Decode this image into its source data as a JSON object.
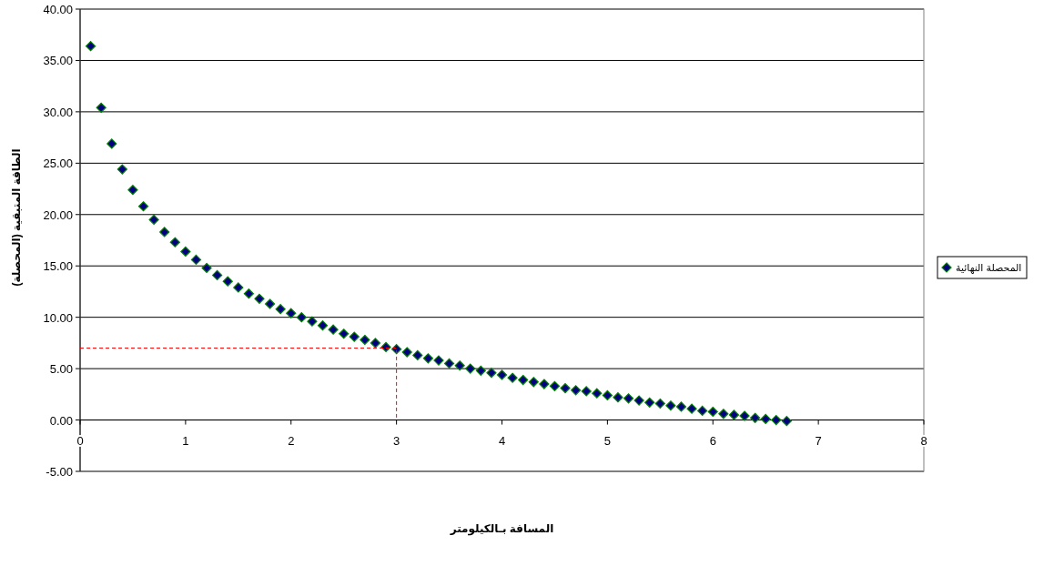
{
  "chart_data": {
    "type": "scatter",
    "xlabel": "المسافة  بـالكيلومتر",
    "ylabel": "الطاقة المتبقية (المحصلة)",
    "xlim": [
      0,
      8
    ],
    "xticks": [
      0,
      1,
      2,
      3,
      4,
      5,
      6,
      7,
      8
    ],
    "ylim": [
      -5,
      40
    ],
    "yticks": [
      {
        "value": -5,
        "label": "-5.00"
      },
      {
        "value": 0,
        "label": "0.00"
      },
      {
        "value": 5,
        "label": "5.00"
      },
      {
        "value": 10,
        "label": "10.00"
      },
      {
        "value": 15,
        "label": "15.00"
      },
      {
        "value": 20,
        "label": "20.00"
      },
      {
        "value": 25,
        "label": "25.00"
      },
      {
        "value": 30,
        "label": "30.00"
      },
      {
        "value": 35,
        "label": "35.00"
      },
      {
        "value": 40,
        "label": "40.00"
      }
    ],
    "grid": "y",
    "legend": "right",
    "marker": "diamond",
    "series": [
      {
        "name": "المحصلة النهائية",
        "color": "#000080",
        "x": [
          0.1,
          0.2,
          0.3,
          0.4,
          0.5,
          0.6,
          0.7,
          0.8,
          0.9,
          1.0,
          1.1,
          1.2,
          1.3,
          1.4,
          1.5,
          1.6,
          1.7,
          1.8,
          1.9,
          2.0,
          2.1,
          2.2,
          2.3,
          2.4,
          2.5,
          2.6,
          2.7,
          2.8,
          2.9,
          3.0,
          3.1,
          3.2,
          3.3,
          3.4,
          3.5,
          3.6,
          3.7,
          3.8,
          3.9,
          4.0,
          4.1,
          4.2,
          4.3,
          4.4,
          4.5,
          4.6,
          4.7,
          4.8,
          4.9,
          5.0,
          5.1,
          5.2,
          5.3,
          5.4,
          5.5,
          5.6,
          5.7,
          5.8,
          5.9,
          6.0,
          6.1,
          6.2,
          6.3,
          6.4,
          6.5,
          6.6,
          6.7
        ],
        "values": [
          36.4,
          30.4,
          26.9,
          24.4,
          22.4,
          20.8,
          19.5,
          18.3,
          17.3,
          16.4,
          15.6,
          14.8,
          14.1,
          13.5,
          12.9,
          12.3,
          11.8,
          11.3,
          10.8,
          10.4,
          10.0,
          9.6,
          9.2,
          8.8,
          8.4,
          8.1,
          7.8,
          7.5,
          7.1,
          6.9,
          6.6,
          6.3,
          6.0,
          5.8,
          5.5,
          5.3,
          5.0,
          4.8,
          4.6,
          4.4,
          4.1,
          3.9,
          3.7,
          3.5,
          3.3,
          3.1,
          2.9,
          2.8,
          2.6,
          2.4,
          2.2,
          2.1,
          1.9,
          1.7,
          1.6,
          1.4,
          1.3,
          1.1,
          0.9,
          0.8,
          0.6,
          0.5,
          0.4,
          0.2,
          0.1,
          0.0,
          -0.1
        ]
      },
      {
        "type": "line",
        "color": "#ff0000",
        "line_style": "dashed",
        "marker": "none",
        "x": [
          0,
          3,
          3
        ],
        "values": [
          7,
          7,
          0
        ]
      }
    ]
  }
}
